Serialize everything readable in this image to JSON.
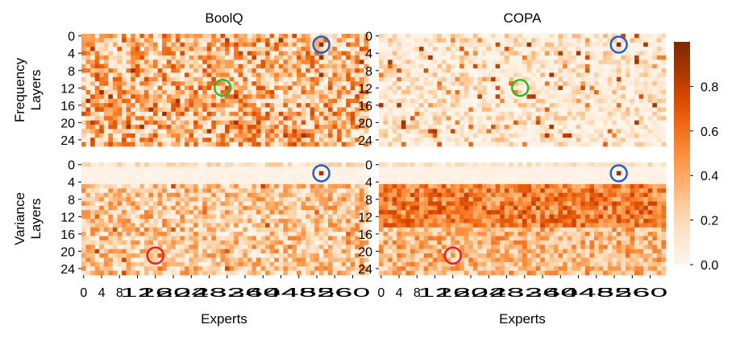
{
  "chart_data": {
    "type": "heatmap",
    "layout": "2x2 grid of heatmaps with shared colorbar",
    "column_titles": [
      "BoolQ",
      "COPA"
    ],
    "row_titles": [
      [
        "Frequency",
        "Layers"
      ],
      [
        "Variance",
        "Layers"
      ]
    ],
    "xlabel": "Experts",
    "x_ticks": [
      "0",
      "4",
      "8",
      "12",
      "16",
      "20",
      "24",
      "28",
      "32",
      "36",
      "40",
      "44",
      "48",
      "52",
      "56",
      "60"
    ],
    "y_ticks": [
      "0",
      "4",
      "8",
      "12",
      "16",
      "20",
      "24"
    ],
    "x_range": [
      0,
      63
    ],
    "y_range": [
      0,
      25
    ],
    "colorbar": {
      "ticks": [
        "0.0",
        "0.2",
        "0.4",
        "0.6",
        "0.8"
      ],
      "range": [
        0,
        1
      ],
      "colormap": "Oranges"
    },
    "panels": [
      {
        "row": "Frequency",
        "column": "BoolQ",
        "pattern": "dense scatter of medium-to-high values across all layers and experts",
        "circles": [
          {
            "color": "#1f5fd6",
            "expert": 53,
            "layer": 2
          },
          {
            "color": "#2db82d",
            "expert": 31,
            "layer": 12
          }
        ]
      },
      {
        "row": "Frequency",
        "column": "COPA",
        "pattern": "mostly low values with sparse high cells",
        "circles": [
          {
            "color": "#1f5fd6",
            "expert": 53,
            "layer": 2
          },
          {
            "color": "#2db82d",
            "expert": 31,
            "layer": 12
          }
        ]
      },
      {
        "row": "Variance",
        "column": "BoolQ",
        "pattern": "near-zero band in layers 1-4, medium values elsewhere",
        "circles": [
          {
            "color": "#1f5fd6",
            "expert": 53,
            "layer": 2
          },
          {
            "color": "#e32222",
            "expert": 16,
            "layer": 21
          }
        ]
      },
      {
        "row": "Variance",
        "column": "COPA",
        "pattern": "near-zero band in layers 1-4, high values in layers 5-14, medium below",
        "circles": [
          {
            "color": "#1f5fd6",
            "expert": 53,
            "layer": 2
          },
          {
            "color": "#e32222",
            "expert": 16,
            "layer": 21
          }
        ]
      }
    ]
  }
}
